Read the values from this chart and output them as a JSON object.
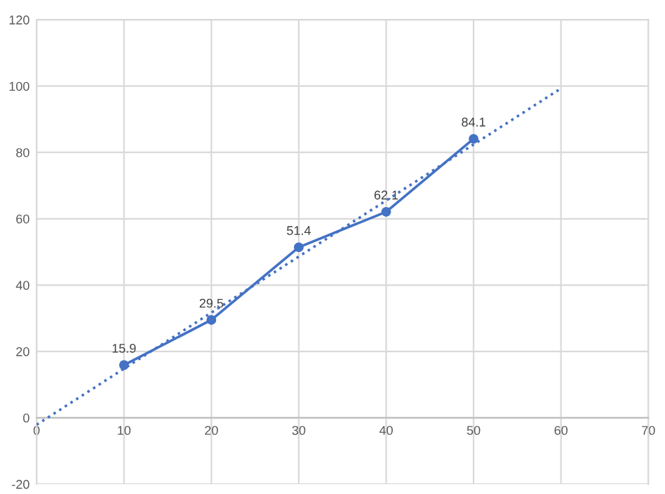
{
  "chart_data": {
    "type": "line",
    "xlim": [
      0,
      70
    ],
    "xticks": [
      0,
      10,
      20,
      30,
      40,
      50,
      60,
      70
    ],
    "ylim": [
      -20,
      120
    ],
    "yticks": [
      -20,
      0,
      20,
      40,
      60,
      80,
      100,
      120
    ],
    "grid": true,
    "marker": "circle",
    "data_labels": true,
    "series": [
      {
        "color": "#4472c4",
        "x": [
          10,
          20,
          30,
          40,
          50
        ],
        "values": [
          15.9,
          29.5,
          51.4,
          62.1,
          84.1
        ],
        "line_style": "solid"
      },
      {
        "color": "#4472c4",
        "x": [
          0,
          60
        ],
        "values": [
          -2.1,
          99.3
        ],
        "line_style": "dotted",
        "marker": "none",
        "data_labels": false
      }
    ]
  }
}
